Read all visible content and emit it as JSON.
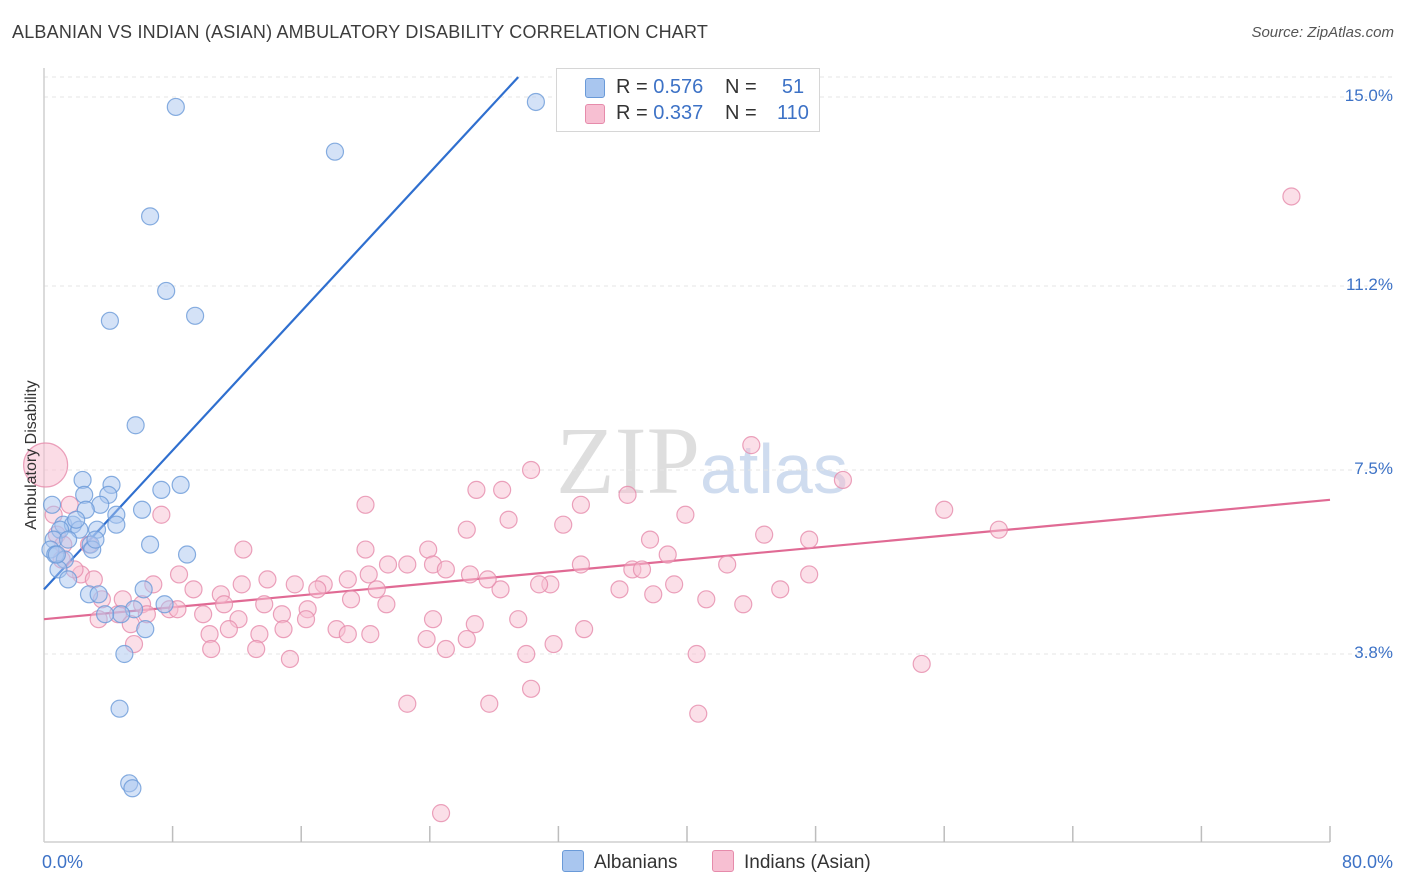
{
  "title": "ALBANIAN VS INDIAN (ASIAN) AMBULATORY DISABILITY CORRELATION CHART",
  "source": "Source: ZipAtlas.com",
  "watermark": {
    "zip": "ZIP",
    "atlas": "atlas"
  },
  "legend": {
    "series1": {
      "r_label": "R = ",
      "r_value": "0.576",
      "n_label": "N = ",
      "n_value": "51"
    },
    "series2": {
      "r_label": "R = ",
      "r_value": "0.337",
      "n_label": "N = ",
      "n_value": "110"
    }
  },
  "bottom_legend": {
    "series1": "Albanians",
    "series2": "Indians (Asian)"
  },
  "colors": {
    "albanian_fill": "#a9c6ef",
    "albanian_stroke": "#6a9ad8",
    "albanian_line": "#2f6fcf",
    "indian_fill": "#f7bfd2",
    "indian_stroke": "#e68bab",
    "indian_line": "#e06a94",
    "grid": "#e6e6e6",
    "axis_text": "#3d72c6"
  },
  "chart_data": {
    "type": "scatter",
    "title": "ALBANIAN VS INDIAN (ASIAN) AMBULATORY DISABILITY CORRELATION CHART",
    "xlabel": "",
    "ylabel": "Ambulatory Disability",
    "xlim": [
      0,
      80
    ],
    "ylim": [
      0,
      15.8
    ],
    "x_tick_labels": [
      "0.0%",
      "80.0%"
    ],
    "y_ticks": [
      3.8,
      7.5,
      11.2,
      15.0
    ],
    "y_tick_labels": [
      "3.8%",
      "7.5%",
      "11.2%",
      "15.0%"
    ],
    "grid": true,
    "legend_position": "top-center",
    "series": [
      {
        "name": "Albanians",
        "r": 0.576,
        "n": 51,
        "trend": {
          "x": [
            0,
            29.5
          ],
          "y": [
            5.1,
            15.4
          ]
        },
        "points": [
          [
            8.2,
            14.8
          ],
          [
            18.1,
            13.9
          ],
          [
            30.6,
            14.9
          ],
          [
            6.6,
            12.6
          ],
          [
            7.6,
            11.1
          ],
          [
            9.4,
            10.6
          ],
          [
            4.1,
            10.5
          ],
          [
            5.7,
            8.4
          ],
          [
            2.4,
            7.3
          ],
          [
            4.2,
            7.2
          ],
          [
            8.5,
            7.2
          ],
          [
            2.5,
            7.0
          ],
          [
            4.0,
            7.0
          ],
          [
            7.3,
            7.1
          ],
          [
            0.5,
            6.8
          ],
          [
            3.5,
            6.8
          ],
          [
            2.6,
            6.7
          ],
          [
            4.5,
            6.6
          ],
          [
            6.1,
            6.7
          ],
          [
            1.2,
            6.4
          ],
          [
            1.8,
            6.4
          ],
          [
            1.0,
            6.3
          ],
          [
            2.2,
            6.3
          ],
          [
            3.3,
            6.3
          ],
          [
            4.5,
            6.4
          ],
          [
            0.6,
            6.1
          ],
          [
            1.5,
            6.1
          ],
          [
            2.9,
            6.0
          ],
          [
            0.4,
            5.9
          ],
          [
            0.7,
            5.8
          ],
          [
            1.3,
            5.7
          ],
          [
            3.0,
            5.9
          ],
          [
            6.6,
            6.0
          ],
          [
            0.9,
            5.5
          ],
          [
            1.5,
            5.3
          ],
          [
            8.9,
            5.8
          ],
          [
            6.2,
            5.1
          ],
          [
            2.8,
            5.0
          ],
          [
            3.4,
            5.0
          ],
          [
            7.5,
            4.8
          ],
          [
            5.6,
            4.7
          ],
          [
            4.8,
            4.6
          ],
          [
            3.8,
            4.6
          ],
          [
            6.3,
            4.3
          ],
          [
            5.0,
            3.8
          ],
          [
            4.7,
            2.7
          ],
          [
            5.3,
            1.2
          ],
          [
            5.5,
            1.1
          ],
          [
            0.8,
            5.8
          ],
          [
            2.0,
            6.5
          ],
          [
            3.2,
            6.1
          ]
        ]
      },
      {
        "name": "Indians (Asian)",
        "r": 0.337,
        "n": 110,
        "trend": {
          "x": [
            0,
            80
          ],
          "y": [
            4.5,
            6.9
          ]
        },
        "points": [
          [
            0.1,
            7.6
          ],
          [
            77.6,
            13.0
          ],
          [
            44.0,
            8.0
          ],
          [
            49.7,
            7.3
          ],
          [
            30.3,
            7.5
          ],
          [
            26.9,
            7.1
          ],
          [
            28.5,
            7.1
          ],
          [
            36.3,
            7.0
          ],
          [
            33.4,
            6.8
          ],
          [
            44.8,
            6.2
          ],
          [
            39.9,
            6.6
          ],
          [
            56.0,
            6.7
          ],
          [
            59.4,
            6.3
          ],
          [
            28.9,
            6.5
          ],
          [
            32.3,
            6.4
          ],
          [
            37.7,
            6.1
          ],
          [
            47.6,
            6.1
          ],
          [
            26.3,
            6.3
          ],
          [
            20.0,
            5.9
          ],
          [
            23.9,
            5.9
          ],
          [
            21.4,
            5.6
          ],
          [
            24.2,
            5.6
          ],
          [
            25.0,
            5.5
          ],
          [
            18.9,
            5.3
          ],
          [
            20.2,
            5.4
          ],
          [
            22.6,
            5.6
          ],
          [
            17.4,
            5.2
          ],
          [
            26.5,
            5.4
          ],
          [
            38.8,
            5.8
          ],
          [
            33.4,
            5.6
          ],
          [
            36.6,
            5.5
          ],
          [
            37.2,
            5.5
          ],
          [
            15.6,
            5.2
          ],
          [
            13.9,
            5.3
          ],
          [
            12.3,
            5.2
          ],
          [
            11.0,
            5.0
          ],
          [
            17.0,
            5.1
          ],
          [
            20.7,
            5.1
          ],
          [
            28.4,
            5.1
          ],
          [
            31.5,
            5.2
          ],
          [
            35.8,
            5.1
          ],
          [
            39.2,
            5.2
          ],
          [
            42.5,
            5.6
          ],
          [
            45.8,
            5.1
          ],
          [
            47.6,
            5.4
          ],
          [
            9.3,
            5.1
          ],
          [
            8.4,
            5.4
          ],
          [
            6.8,
            5.2
          ],
          [
            2.3,
            5.4
          ],
          [
            3.1,
            5.3
          ],
          [
            1.1,
            5.7
          ],
          [
            1.9,
            5.5
          ],
          [
            0.8,
            6.2
          ],
          [
            1.2,
            6.0
          ],
          [
            0.6,
            6.6
          ],
          [
            7.3,
            6.6
          ],
          [
            12.4,
            5.9
          ],
          [
            27.6,
            5.3
          ],
          [
            30.8,
            5.2
          ],
          [
            19.1,
            4.9
          ],
          [
            21.3,
            4.8
          ],
          [
            11.2,
            4.8
          ],
          [
            13.7,
            4.8
          ],
          [
            16.4,
            4.7
          ],
          [
            6.1,
            4.8
          ],
          [
            7.8,
            4.7
          ],
          [
            8.3,
            4.7
          ],
          [
            9.9,
            4.6
          ],
          [
            12.1,
            4.5
          ],
          [
            14.8,
            4.6
          ],
          [
            16.3,
            4.5
          ],
          [
            10.3,
            4.2
          ],
          [
            11.5,
            4.3
          ],
          [
            13.4,
            4.2
          ],
          [
            14.9,
            4.3
          ],
          [
            18.2,
            4.3
          ],
          [
            18.9,
            4.2
          ],
          [
            20.3,
            4.2
          ],
          [
            24.2,
            4.5
          ],
          [
            26.8,
            4.4
          ],
          [
            29.5,
            4.5
          ],
          [
            23.8,
            4.1
          ],
          [
            26.3,
            4.1
          ],
          [
            33.6,
            4.3
          ],
          [
            41.2,
            4.9
          ],
          [
            43.5,
            4.8
          ],
          [
            37.9,
            5.0
          ],
          [
            3.6,
            4.9
          ],
          [
            4.6,
            4.6
          ],
          [
            5.4,
            4.4
          ],
          [
            6.4,
            4.6
          ],
          [
            3.4,
            4.5
          ],
          [
            5.6,
            4.0
          ],
          [
            10.4,
            3.9
          ],
          [
            13.2,
            3.9
          ],
          [
            15.3,
            3.7
          ],
          [
            25.0,
            3.9
          ],
          [
            30.0,
            3.8
          ],
          [
            40.6,
            3.8
          ],
          [
            54.6,
            3.6
          ],
          [
            30.3,
            3.1
          ],
          [
            27.7,
            2.8
          ],
          [
            22.6,
            2.8
          ],
          [
            40.7,
            2.6
          ],
          [
            31.7,
            4.0
          ],
          [
            24.7,
            0.6
          ],
          [
            20.0,
            6.8
          ],
          [
            1.6,
            6.8
          ],
          [
            2.8,
            6.0
          ],
          [
            4.9,
            4.9
          ]
        ]
      }
    ]
  }
}
